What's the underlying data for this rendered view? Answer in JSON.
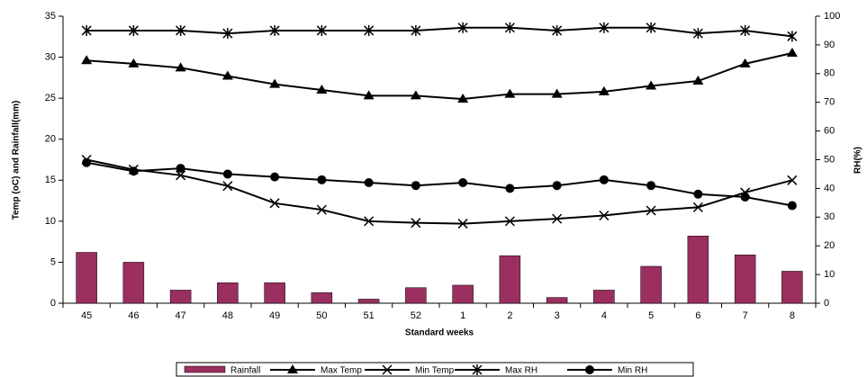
{
  "chart_data": {
    "type": "bar-line",
    "y_label": "Temp (oC) and Rainfall(mm)",
    "y2_label": "RH(%)",
    "x_label": "Standard weeks",
    "categories": [
      "45",
      "46",
      "47",
      "48",
      "49",
      "50",
      "51",
      "52",
      "1",
      "2",
      "3",
      "4",
      "5",
      "6",
      "7",
      "8"
    ],
    "ylim": [
      0,
      35
    ],
    "yticks": [
      0,
      5,
      10,
      15,
      20,
      25,
      30,
      35
    ],
    "y2lim": [
      0,
      100
    ],
    "y2ticks": [
      0,
      10,
      20,
      30,
      40,
      50,
      60,
      70,
      80,
      90,
      100
    ],
    "legend": "bottom",
    "series": [
      {
        "name": "Rainfall",
        "kind": "bar",
        "color": "#9b2f5f",
        "values": [
          6.2,
          5.0,
          1.6,
          2.5,
          2.5,
          1.3,
          0.5,
          1.9,
          2.2,
          5.8,
          0.7,
          1.6,
          4.5,
          8.2,
          5.9,
          3.9
        ]
      },
      {
        "name": "Max Temp",
        "kind": "line",
        "marker": "triangle",
        "color": "#000000",
        "values": [
          29.6,
          29.2,
          28.7,
          27.7,
          26.7,
          26.0,
          25.3,
          25.3,
          24.9,
          25.5,
          25.5,
          25.8,
          26.5,
          27.1,
          29.2,
          30.5
        ]
      },
      {
        "name": "Min Temp",
        "kind": "line",
        "marker": "x",
        "color": "#000000",
        "values": [
          17.5,
          16.3,
          15.6,
          14.3,
          12.2,
          11.4,
          10.0,
          9.8,
          9.7,
          10.0,
          10.3,
          10.7,
          11.3,
          11.7,
          13.5,
          15.0
        ]
      },
      {
        "name": "Max RH",
        "kind": "line",
        "marker": "star",
        "axis": "y2",
        "color": "#000000",
        "values": [
          95,
          95,
          95,
          94,
          95,
          95,
          95,
          95,
          96,
          96,
          95,
          96,
          96,
          94,
          95,
          93
        ]
      },
      {
        "name": "Min RH",
        "kind": "line",
        "marker": "circle",
        "axis": "y2",
        "color": "#000000",
        "values": [
          49,
          46,
          47,
          45,
          44,
          43,
          42,
          41,
          42,
          40,
          41,
          43,
          41,
          38,
          37,
          34
        ]
      }
    ]
  }
}
